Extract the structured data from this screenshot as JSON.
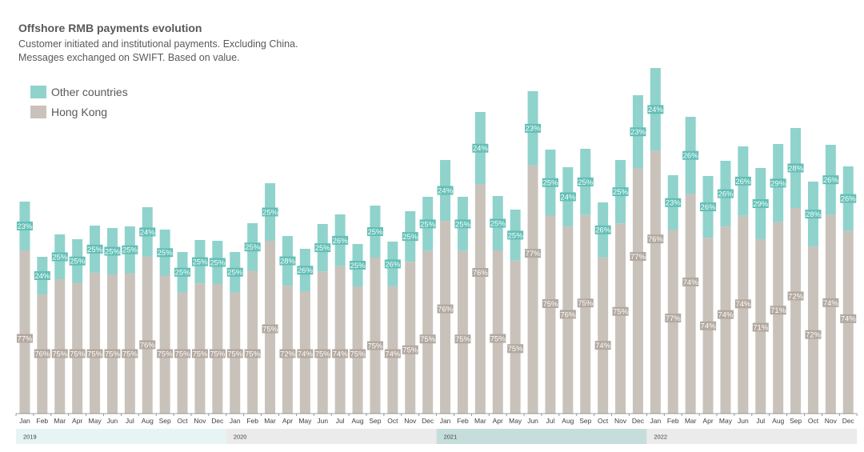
{
  "chart_data": {
    "type": "bar",
    "stacked": true,
    "title": "Offshore RMB payments evolution",
    "subtitle_lines": [
      "Customer initiated and institutional payments. Excluding China.",
      "Messages exchanged on SWIFT. Based on value."
    ],
    "legend": [
      {
        "name": "Other countries",
        "color": "#8fd3cc"
      },
      {
        "name": "Hong Kong",
        "color": "#c9c2bb"
      }
    ],
    "legend_position": "top-left",
    "grid": false,
    "y_axis_shown": false,
    "ylim": [
      0,
      430
    ],
    "categories": [
      "Jan",
      "Feb",
      "Mar",
      "Apr",
      "May",
      "Jun",
      "Jul",
      "Aug",
      "Sep",
      "Oct",
      "Nov",
      "Dec",
      "Jan",
      "Feb",
      "Mar",
      "Apr",
      "May",
      "Jun",
      "Jul",
      "Aug",
      "Sep",
      "Oct",
      "Nov",
      "Dec",
      "Jan",
      "Feb",
      "Mar",
      "Apr",
      "May",
      "Jun",
      "Jul",
      "Aug",
      "Sep",
      "Oct",
      "Nov",
      "Dec",
      "Jan",
      "Feb",
      "Mar",
      "Apr",
      "May",
      "Jun",
      "Jul",
      "Aug",
      "Sep",
      "Oct",
      "Nov",
      "Dec"
    ],
    "years": [
      {
        "label": "2019",
        "start": 0,
        "end": 12,
        "color": "#e6f4f3"
      },
      {
        "label": "2020",
        "start": 12,
        "end": 24,
        "color": "#ebebeb"
      },
      {
        "label": "2021",
        "start": 24,
        "end": 36,
        "color": "#c5dedb"
      },
      {
        "label": "2022",
        "start": 36,
        "end": 48,
        "color": "#ebebeb"
      }
    ],
    "totals": [
      265,
      196,
      224,
      218,
      235,
      232,
      234,
      258,
      230,
      202,
      217,
      216,
      202,
      238,
      288,
      222,
      206,
      237,
      249,
      212,
      260,
      215,
      253,
      271,
      317,
      271,
      377,
      272,
      255,
      403,
      330,
      308,
      331,
      264,
      317,
      398,
      432,
      298,
      371,
      297,
      316,
      334,
      307,
      337,
      357,
      290,
      336,
      309
    ],
    "series": [
      {
        "name": "Other countries",
        "pct_labels": [
          "23%",
          "24%",
          "25%",
          "25%",
          "25%",
          "25%",
          "25%",
          "24%",
          "25%",
          "25%",
          "25%",
          "25%",
          "25%",
          "25%",
          "25%",
          "28%",
          "26%",
          "25%",
          "26%",
          "25%",
          "25%",
          "26%",
          "25%",
          "25%",
          "24%",
          "25%",
          "24%",
          "25%",
          "25%",
          "23%",
          "25%",
          "24%",
          "25%",
          "26%",
          "25%",
          "23%",
          "24%",
          "23%",
          "26%",
          "26%",
          "26%",
          "26%",
          "29%",
          "29%",
          "28%",
          "28%",
          "26%",
          "26%"
        ]
      },
      {
        "name": "Hong Kong",
        "pct_labels": [
          "77%",
          "76%",
          "75%",
          "75%",
          "75%",
          "75%",
          "75%",
          "76%",
          "75%",
          "75%",
          "75%",
          "75%",
          "75%",
          "75%",
          "75%",
          "72%",
          "74%",
          "75%",
          "74%",
          "75%",
          "75%",
          "74%",
          "75%",
          "75%",
          "76%",
          "75%",
          "76%",
          "75%",
          "75%",
          "77%",
          "75%",
          "76%",
          "75%",
          "74%",
          "75%",
          "77%",
          "76%",
          "77%",
          "74%",
          "74%",
          "74%",
          "74%",
          "71%",
          "71%",
          "72%",
          "72%",
          "74%",
          "74%"
        ]
      }
    ]
  }
}
